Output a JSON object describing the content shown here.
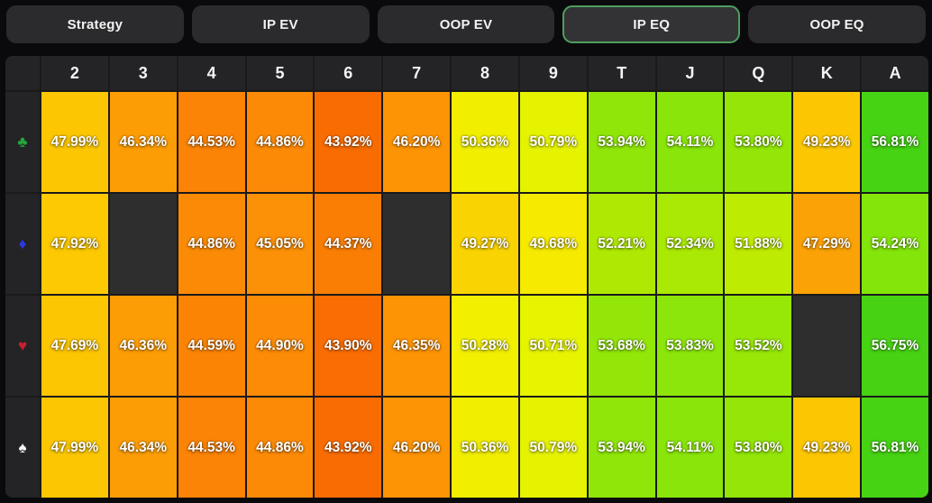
{
  "tabs": [
    {
      "label": "Strategy",
      "active": false
    },
    {
      "label": "IP EV",
      "active": false
    },
    {
      "label": "OOP EV",
      "active": false
    },
    {
      "label": "IP EQ",
      "active": true
    },
    {
      "label": "OOP EQ",
      "active": false
    }
  ],
  "accent": {
    "active_tab_border": "#4d9e5e",
    "tab_background": "#2b2b2d",
    "empty_cell": "#2e2e2e"
  },
  "grid": {
    "columns": [
      "2",
      "3",
      "4",
      "5",
      "6",
      "7",
      "8",
      "9",
      "T",
      "J",
      "Q",
      "K",
      "A"
    ],
    "rows": [
      {
        "suit": "club",
        "symbol": "♣",
        "suit_color": "#23a73d",
        "values": [
          "47.99%",
          "46.34%",
          "44.53%",
          "44.86%",
          "43.92%",
          "46.20%",
          "50.36%",
          "50.79%",
          "53.94%",
          "54.11%",
          "53.80%",
          "49.23%",
          "56.81%"
        ],
        "colors": [
          "#fcc702",
          "#fd9d05",
          "#fb8305",
          "#fc8a06",
          "#f96c02",
          "#fd9405",
          "#f1ee00",
          "#e6f300",
          "#90e608",
          "#8ae60a",
          "#93e607",
          "#fcc702",
          "#46d313"
        ]
      },
      {
        "suit": "diamond",
        "symbol": "♦",
        "suit_color": "#2b38e6",
        "values": [
          "47.92%",
          null,
          "44.86%",
          "45.05%",
          "44.37%",
          null,
          "49.27%",
          "49.68%",
          "52.21%",
          "52.34%",
          "51.88%",
          "47.29%",
          "54.24%"
        ],
        "colors": [
          "#fcc902",
          "#2e2e2e",
          "#fb8b06",
          "#fc9007",
          "#fa7e04",
          "#2e2e2e",
          "#fad402",
          "#f6ea00",
          "#afe903",
          "#aae904",
          "#bdeb02",
          "#fba206",
          "#84e50a"
        ]
      },
      {
        "suit": "heart",
        "symbol": "♥",
        "suit_color": "#c9202e",
        "values": [
          "47.69%",
          "46.36%",
          "44.59%",
          "44.90%",
          "43.90%",
          "46.35%",
          "50.28%",
          "50.71%",
          "53.68%",
          "53.83%",
          "53.52%",
          null,
          "56.75%"
        ],
        "colors": [
          "#fcc602",
          "#fd9d05",
          "#fb8405",
          "#fc8b06",
          "#f96d02",
          "#fd9405",
          "#f2ef00",
          "#e7f400",
          "#93e608",
          "#8de609",
          "#97e707",
          "#2e2e2e",
          "#47d313"
        ]
      },
      {
        "suit": "spade",
        "symbol": "♠",
        "suit_color": "#f5f5f5",
        "values": [
          "47.99%",
          "46.34%",
          "44.53%",
          "44.86%",
          "43.92%",
          "46.20%",
          "50.36%",
          "50.79%",
          "53.94%",
          "54.11%",
          "53.80%",
          "49.23%",
          "56.81%"
        ],
        "colors": [
          "#fcc702",
          "#fd9d05",
          "#fb8305",
          "#fc8a06",
          "#f96c02",
          "#fd9405",
          "#f1ee00",
          "#e6f300",
          "#90e608",
          "#8ae60a",
          "#93e607",
          "#fcc702",
          "#46d313"
        ]
      }
    ]
  }
}
